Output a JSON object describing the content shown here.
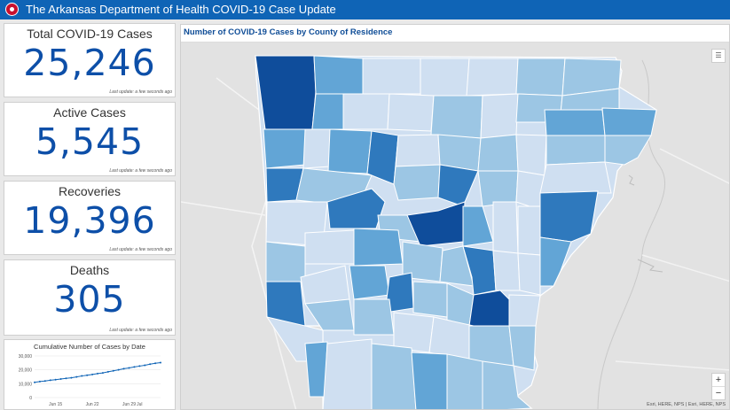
{
  "header": {
    "title": "The Arkansas Department of Health COVID-19 Case Update",
    "seal_icon": "state-health-seal-icon"
  },
  "cards": [
    {
      "title": "Total COVID-19 Cases",
      "value": "25,246",
      "updated": "Last update: a few seconds ago"
    },
    {
      "title": "Active Cases",
      "value": "5,545",
      "updated": "Last update: a few seconds ago"
    },
    {
      "title": "Recoveries",
      "value": "19,396",
      "updated": "Last update: a few seconds ago"
    },
    {
      "title": "Deaths",
      "value": "305",
      "updated": "Last update: a few seconds ago"
    }
  ],
  "chart_data": {
    "type": "line",
    "title": "Cumulative Number of Cases by Date",
    "y_ticks": [
      "30,000",
      "20,000",
      "10,000",
      "0"
    ],
    "ylim": [
      0,
      30000
    ],
    "x_ticks": [
      "Jun 15",
      "Jun 22",
      "Jun 29",
      "Jul"
    ],
    "x": [
      "Jun 11",
      "Jun 12",
      "Jun 13",
      "Jun 14",
      "Jun 15",
      "Jun 16",
      "Jun 17",
      "Jun 18",
      "Jun 19",
      "Jun 20",
      "Jun 21",
      "Jun 22",
      "Jun 23",
      "Jun 24",
      "Jun 25",
      "Jun 26",
      "Jun 27",
      "Jun 28",
      "Jun 29",
      "Jun 30",
      "Jul 1",
      "Jul 2",
      "Jul 3",
      "Jul 4",
      "Jul 5"
    ],
    "values": [
      11000,
      11600,
      12000,
      12500,
      12900,
      13400,
      13900,
      14300,
      14900,
      15600,
      16100,
      16700,
      17300,
      17800,
      18600,
      19300,
      20000,
      20800,
      21400,
      22100,
      22700,
      23300,
      24100,
      24700,
      25246
    ],
    "color": "#0f64b6"
  },
  "map": {
    "title": "Number of COVID-19 Cases by County of Residence",
    "legend_icon": "legend-list-icon",
    "zoom_in": "+",
    "zoom_out": "−",
    "attribution": "Esri, HERE, NPS | Esri, HERE, NPS",
    "colors": {
      "lightest": "#cfdff1",
      "light": "#9cc6e4",
      "medium": "#62a5d6",
      "dark": "#2f79bd",
      "darkest": "#0f4d9b"
    }
  }
}
